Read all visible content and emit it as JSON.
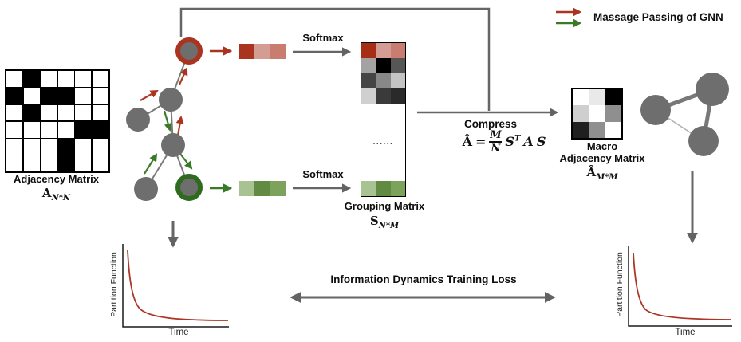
{
  "colors": {
    "node_gray": "#6e6e6e",
    "edge_gray": "#7a7a7a",
    "arrow_gray": "#636363",
    "red_accent": "#a93420",
    "green_accent": "#397a27",
    "curve_red": "#ad3526"
  },
  "legend": {
    "label": "Massage Passing of GNN"
  },
  "labels": {
    "softmax": "Softmax"
  },
  "adjacency_matrix": {
    "title": "Adjacency Matrix",
    "symbol_base": "A",
    "symbol_sub": "N*N",
    "cells": [
      [
        "#ffffff",
        "#000000",
        "#ffffff",
        "#ffffff",
        "#ffffff",
        "#ffffff"
      ],
      [
        "#000000",
        "#ffffff",
        "#000000",
        "#000000",
        "#ffffff",
        "#ffffff"
      ],
      [
        "#ffffff",
        "#000000",
        "#ffffff",
        "#ffffff",
        "#ffffff",
        "#ffffff"
      ],
      [
        "#ffffff",
        "#ffffff",
        "#ffffff",
        "#ffffff",
        "#000000",
        "#000000"
      ],
      [
        "#ffffff",
        "#ffffff",
        "#ffffff",
        "#000000",
        "#ffffff",
        "#ffffff"
      ],
      [
        "#ffffff",
        "#ffffff",
        "#ffffff",
        "#000000",
        "#ffffff",
        "#ffffff"
      ]
    ]
  },
  "red_vector": {
    "cells": [
      [
        "#a93420",
        "#d49d94",
        "#c87d6e"
      ]
    ]
  },
  "green_vector": {
    "cells": [
      [
        "#a9c292",
        "#618b42",
        "#7ca25c"
      ]
    ]
  },
  "grouping_matrix": {
    "title": "Grouping Matrix",
    "symbol_base": "S",
    "symbol_sub": "N*M",
    "dots": "......",
    "top_cells": [
      [
        "#a52e14",
        "#d39d96",
        "#c87d70"
      ],
      [
        "#a3a3a3",
        "#000000",
        "#565656"
      ],
      [
        "#454545",
        "#888888",
        "#c4c4c4"
      ],
      [
        "#d0d0d0",
        "#3a3a3a",
        "#2a2a2a"
      ]
    ],
    "bottom_cells": [
      [
        "#a9c292",
        "#618b42",
        "#7ca25c"
      ]
    ]
  },
  "compress": {
    "label": "Compress",
    "formula": {
      "lhs": "Â",
      "equals": "=",
      "numerator": "M",
      "denominator": "N",
      "s1": "S",
      "sup": "T",
      "a": "A",
      "s2": "S"
    }
  },
  "macro_matrix": {
    "title_line1": "Macro",
    "title_line2": "Adjacency Matrix",
    "symbol_base": "Â",
    "symbol_sub": "M*M",
    "cells": [
      [
        "#ffffff",
        "#e9e9e9",
        "#000000"
      ],
      [
        "#cfcfcf",
        "#ffffff",
        "#8f8f8f"
      ],
      [
        "#1f1f1f",
        "#8f8f8f",
        "#ffffff"
      ]
    ]
  },
  "loss": {
    "label": "Information Dynamics Training Loss"
  },
  "plots": {
    "ylabel": "Partition Function",
    "xlabel": "Time"
  }
}
